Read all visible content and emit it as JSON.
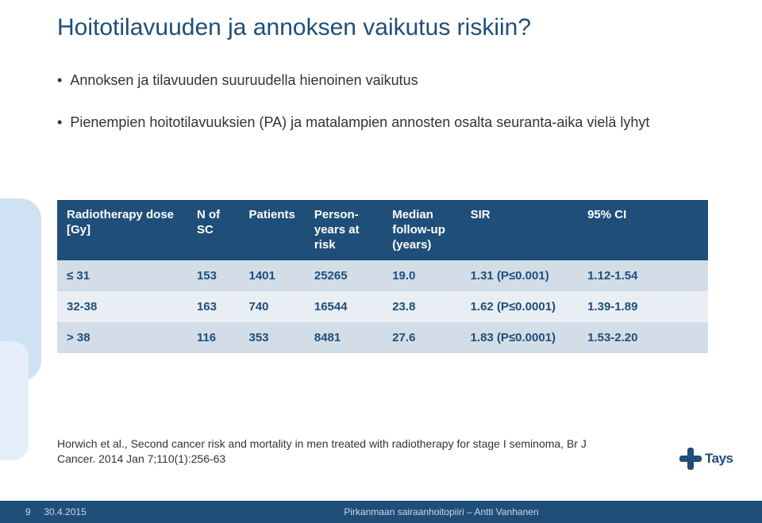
{
  "title": "Hoitotilavuuden ja annoksen vaikutus riskiin?",
  "bullets": {
    "b1": "Annoksen ja tilavuuden suuruudella hienoinen vaikutus",
    "b2": "Pienempien hoitotilavuuksien (PA) ja matalampien annosten osalta seuranta-aika vielä lyhyt"
  },
  "table": {
    "columns": [
      "Radiotherapy dose [Gy]",
      "N of SC",
      "Patients",
      "Person-years at risk",
      "Median follow-up (years)",
      "SIR",
      "95% CI"
    ],
    "col_widths_pct": [
      20,
      8,
      10,
      12,
      12,
      18,
      20
    ],
    "rows": [
      [
        "≤ 31",
        "153",
        "1401",
        "25265",
        "19.0",
        "1.31 (P≤0.001)",
        "1.12-1.54"
      ],
      [
        "32-38",
        "163",
        "740",
        "16544",
        "23.8",
        "1.62 (P≤0.0001)",
        "1.39-1.89"
      ],
      [
        "> 38",
        "116",
        "353",
        "8481",
        "27.6",
        "1.83 (P≤0.0001)",
        "1.53-2.20"
      ]
    ],
    "header_bg": "#1f4e79",
    "header_fg": "#ffffff",
    "row_odd_bg": "#d2dde8",
    "row_even_bg": "#e9eef5",
    "cell_fg": "#1f4e79"
  },
  "citation": "Horwich et al., Second cancer risk and mortality in men treated with radiotherapy for stage I seminoma, Br J Cancer. 2014 Jan 7;110(1):256-63",
  "logo_text": "Tays",
  "footer": {
    "page": "9",
    "date": "30.4.2015",
    "center": "Pirkanmaan sairaanhoitopiiri – Antti Vanhanen"
  },
  "colors": {
    "title": "#1f4e79",
    "accent1": "#cfe2f3",
    "accent2": "#e6eef9",
    "footer_bg": "#1f4e79",
    "footer_fg": "#c9d9ea"
  }
}
